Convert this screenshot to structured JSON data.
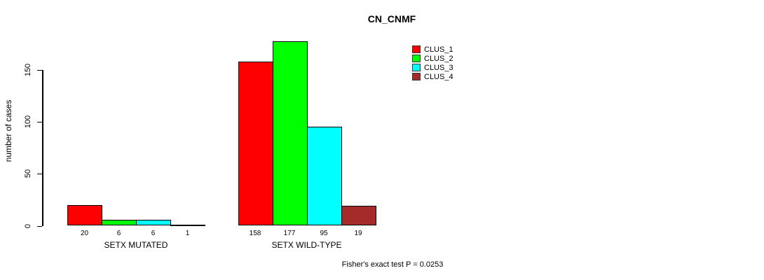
{
  "title": "CN_CNMF",
  "footer": "Fisher's exact test P = 0.0253",
  "chart_data": {
    "type": "bar",
    "title": "CN_CNMF",
    "xlabel": "",
    "ylabel": "number of cases",
    "ylim": [
      0,
      180
    ],
    "yticks": [
      0,
      50,
      100,
      150
    ],
    "grid": false,
    "legend_position": "top-right",
    "series": [
      {
        "name": "CLUS_1",
        "color": "#FF0000"
      },
      {
        "name": "CLUS_2",
        "color": "#00FF00"
      },
      {
        "name": "CLUS_3",
        "color": "#00FFFF"
      },
      {
        "name": "CLUS_4",
        "color": "#A52A2A"
      }
    ],
    "groups": [
      {
        "label": "SETX MUTATED",
        "values": [
          20,
          6,
          6,
          1
        ]
      },
      {
        "label": "SETX WILD-TYPE",
        "values": [
          158,
          177,
          95,
          19
        ]
      }
    ],
    "annotation": "Fisher's exact test P = 0.0253"
  }
}
